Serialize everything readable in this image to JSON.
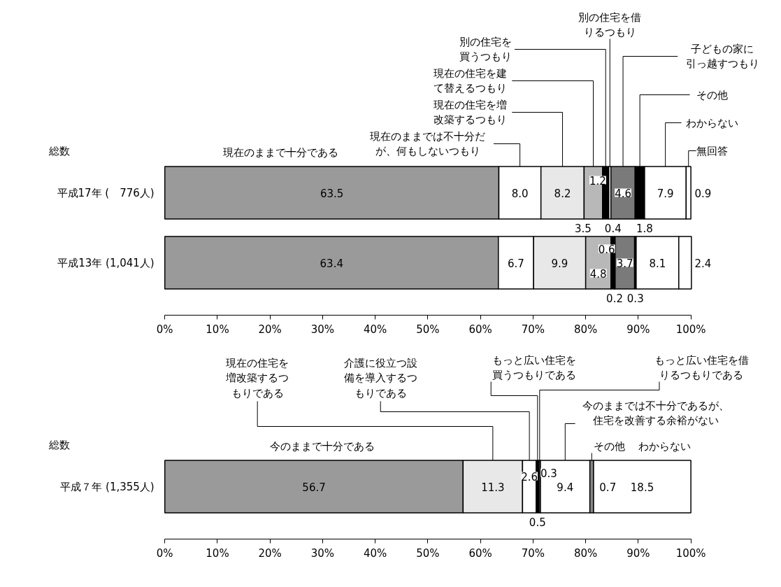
{
  "chart_data": [
    {
      "type": "bar",
      "orientation": "horizontal",
      "stacked": true,
      "data_labels": true,
      "categories": [
        "平成17年 (　776人)",
        "平成13年 (1,041人)"
      ],
      "series": [
        {
          "name": "現在のままで十分である",
          "color": "#9a9a9a",
          "values": [
            63.5,
            63.4
          ]
        },
        {
          "name": "現在のままでは不十分だが、何もしないつもり",
          "color": "#ffffff",
          "values": [
            8.0,
            6.7
          ],
          "value_labels": [
            "8.0",
            "6.7"
          ]
        },
        {
          "name": "現在の住宅を増改築するつもり",
          "color": "#e8e8e8",
          "values": [
            8.2,
            9.9
          ]
        },
        {
          "name": "現在の住宅を建て替えるつもり",
          "color": "#b8b8b8",
          "values": [
            3.5,
            4.8
          ]
        },
        {
          "name": "別の住宅を買うつもり",
          "color": "#000000",
          "values": [
            1.2,
            0.6
          ]
        },
        {
          "name": "別の住宅を借りるつもり",
          "color": "#ffffff",
          "values": [
            0.4,
            0.2
          ]
        },
        {
          "name": "子どもの家に引っ越すつもり",
          "color": "#7a7a7a",
          "values": [
            4.6,
            3.7
          ]
        },
        {
          "name": "その他",
          "color": "#000000",
          "values": [
            1.8,
            0.3
          ]
        },
        {
          "name": "わからない",
          "color": "#ffffff",
          "values": [
            7.9,
            8.1
          ]
        },
        {
          "name": "無回答",
          "color": "#ffffff",
          "values": [
            0.9,
            2.4
          ]
        }
      ],
      "xlim": [
        0,
        100
      ],
      "xticks": [
        {
          "value": 0,
          "label": "0%"
        },
        {
          "value": 10,
          "label": "10%"
        },
        {
          "value": 20,
          "label": "20%"
        },
        {
          "value": 30,
          "label": "30%"
        },
        {
          "value": 40,
          "label": "40%"
        },
        {
          "value": 50,
          "label": "50%"
        },
        {
          "value": 60,
          "label": "60%"
        },
        {
          "value": 70,
          "label": "70%"
        },
        {
          "value": 80,
          "label": "80%"
        },
        {
          "value": 90,
          "label": "90%"
        },
        {
          "value": 100,
          "label": "100%"
        }
      ],
      "annotations": [
        "総数"
      ]
    },
    {
      "type": "bar",
      "orientation": "horizontal",
      "stacked": true,
      "data_labels": true,
      "categories": [
        "平成７年 (1,355人)"
      ],
      "series": [
        {
          "name": "今のままで十分である",
          "color": "#9a9a9a",
          "values": [
            56.7
          ]
        },
        {
          "name": "現在の住宅を増改築するつもりである",
          "color": "#e8e8e8",
          "values": [
            11.3
          ]
        },
        {
          "name": "介護に役立つ設備を導入するつもりである",
          "color": "#ffffff",
          "values": [
            2.6
          ]
        },
        {
          "name": "もっと広い住宅を買うつもりである",
          "color": "#000000",
          "values": [
            0.5
          ]
        },
        {
          "name": "もっと広い住宅を借りるつもりである",
          "color": "#555555",
          "values": [
            0.3
          ]
        },
        {
          "name": "今のままでは不十分であるが、住宅を改善する余裕がない",
          "color": "#ffffff",
          "values": [
            9.4
          ]
        },
        {
          "name": "その他",
          "color": "#888888",
          "values": [
            0.7
          ]
        },
        {
          "name": "わからない",
          "color": "#ffffff",
          "values": [
            18.5
          ]
        }
      ],
      "xlim": [
        0,
        100
      ],
      "xticks": [
        {
          "value": 0,
          "label": "0%"
        },
        {
          "value": 10,
          "label": "10%"
        },
        {
          "value": 20,
          "label": "20%"
        },
        {
          "value": 30,
          "label": "30%"
        },
        {
          "value": 40,
          "label": "40%"
        },
        {
          "value": 50,
          "label": "50%"
        },
        {
          "value": 60,
          "label": "60%"
        },
        {
          "value": 70,
          "label": "70%"
        },
        {
          "value": 80,
          "label": "80%"
        },
        {
          "value": 90,
          "label": "90%"
        },
        {
          "value": 100,
          "label": "100%"
        }
      ],
      "annotations": [
        "総数"
      ]
    }
  ]
}
